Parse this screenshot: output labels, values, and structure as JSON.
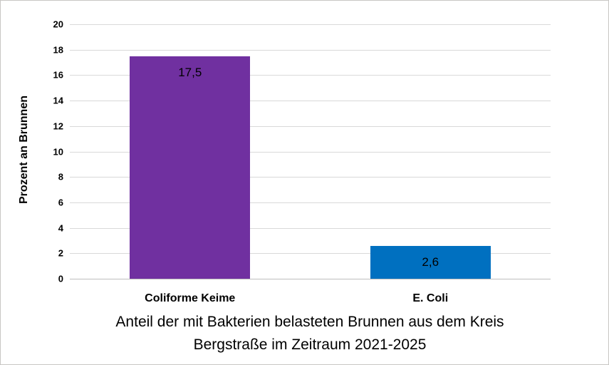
{
  "chart_data": {
    "type": "bar",
    "title": "Anteil der mit Bakterien belasteten Brunnen aus dem Kreis Bergstraße im Zeitraum 2021-2025",
    "title_lines": [
      "Anteil der mit Bakterien belasteten Brunnen aus dem Kreis",
      "Bergstraße im Zeitraum 2021-2025"
    ],
    "xlabel": "",
    "ylabel": "Prozent an Brunnen",
    "ylim": [
      0,
      20
    ],
    "ytick_step": 2,
    "yticks": [
      0,
      2,
      4,
      6,
      8,
      10,
      12,
      14,
      16,
      18,
      20
    ],
    "categories": [
      "Coliforme Keime",
      "E. Coli"
    ],
    "values": [
      17.5,
      2.6
    ],
    "value_labels": [
      "17,5",
      "2,6"
    ],
    "bar_colors": [
      "#7030A0",
      "#0070C0"
    ],
    "grid": true,
    "legend": "none",
    "gridline_color": "#d9d9d9",
    "axis_line_color": "#bfbfbf",
    "background": "#ffffff"
  }
}
